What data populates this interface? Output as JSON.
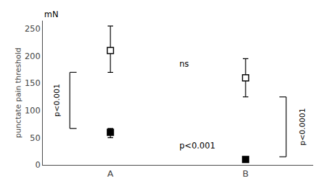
{
  "chart_data": {
    "type": "scatter",
    "categories": [
      "A",
      "B"
    ],
    "series": [
      {
        "color": "#000000",
        "marker": "open square",
        "values": [
          210,
          160
        ],
        "error_low": [
          40,
          35
        ],
        "error_high": [
          45,
          35
        ],
        "annotation": "ns"
      },
      {
        "color": "#000000",
        "marker": "filled square",
        "values": [
          60,
          10
        ],
        "error_low": [
          10,
          5
        ],
        "error_high": [
          7,
          5
        ],
        "annotation": "p<0.001"
      }
    ],
    "ylabel": "punctate pain threshold",
    "yunit": "mN",
    "ylim": [
      0,
      265
    ],
    "yticks": [
      0,
      50,
      100,
      150,
      200,
      250
    ],
    "brackets": [
      {
        "category": "A",
        "label": "p<0.001"
      },
      {
        "category": "B",
        "label": "p<0.0001"
      }
    ],
    "grid": false
  }
}
